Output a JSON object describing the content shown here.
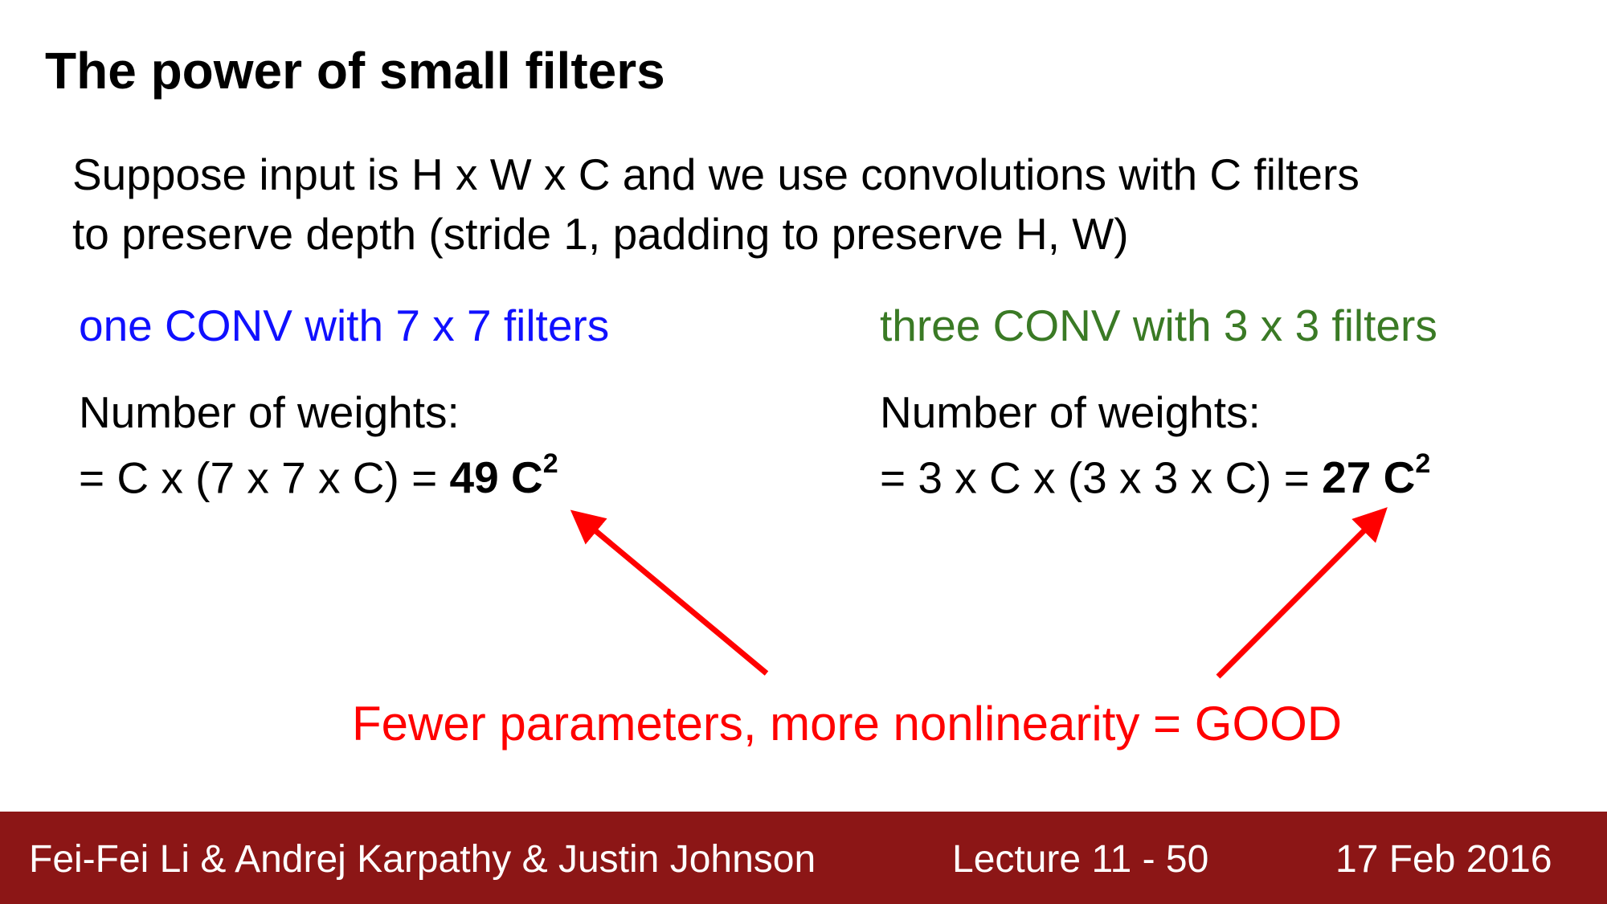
{
  "slide": {
    "title": "The power of small filters",
    "intro_line1": "Suppose input is H x W x C and we use convolutions with C filters",
    "intro_line2": "to preserve depth (stride 1, padding to preserve H, W)"
  },
  "left": {
    "heading": "one CONV with 7 x 7 filters",
    "weights_label": "Number of weights:",
    "formula": "= C x (7 x 7 x C) = ",
    "result": "49 C",
    "result_exponent": "2",
    "color": "#1010ff"
  },
  "right": {
    "heading": "three CONV with 3 x 3 filters",
    "weights_label": "Number of weights:",
    "formula": "= 3 x C x (3 x 3 x C) = ",
    "result": "27 C",
    "result_exponent": "2",
    "color": "#3a7a25"
  },
  "conclusion": {
    "text": "Fewer parameters, more nonlinearity = GOOD",
    "color": "#ff0000"
  },
  "footer": {
    "authors": "Fei-Fei Li & Andrej Karpathy & Justin Johnson",
    "lecture": "Lecture 11 - 50",
    "date": "17 Feb 2016",
    "background": "#8c1616"
  }
}
